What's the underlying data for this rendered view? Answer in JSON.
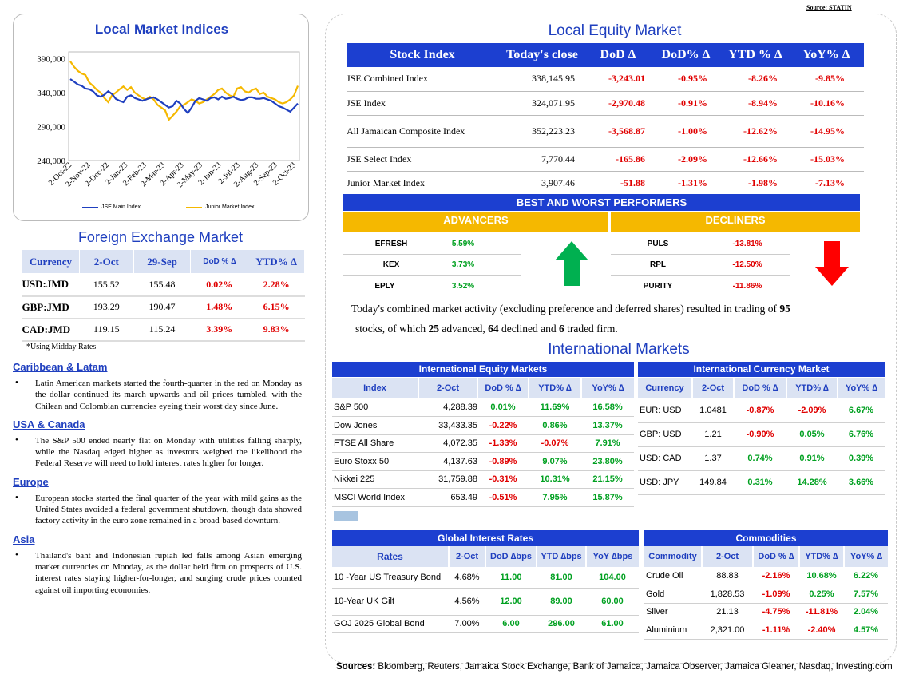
{
  "source_top": "Source: STATIN",
  "chart": {
    "title": "Local Market Indices",
    "legend": [
      "JSE Main Index",
      "Junior Market Index"
    ]
  },
  "chart_data": {
    "type": "line",
    "title": "Local Market Indices",
    "x_tick_labels": [
      "2-Oct-22",
      "2-Nov-22",
      "2-Dec-22",
      "2-Jan-23",
      "2-Feb-23",
      "2-Mar-23",
      "2-Apr-23",
      "2-May-23",
      "2-Jun-23",
      "2-Jul-23",
      "2-Aug-23",
      "2-Sep-23",
      "2-Oct-23"
    ],
    "y_tick_labels": [
      "240,000",
      "290,000",
      "340,000",
      "390,000"
    ],
    "ylim": [
      240000,
      400000
    ],
    "series": [
      {
        "name": "JSE Main Index",
        "color": "#1f3fbf",
        "values": [
          360000,
          356000,
          352000,
          350000,
          346000,
          345000,
          342000,
          336000,
          334000,
          337000,
          342000,
          338000,
          331000,
          328000,
          326000,
          334000,
          336000,
          332000,
          330000,
          328000,
          330000,
          332000,
          333000,
          330000,
          326000,
          322000,
          318000,
          320000,
          328000,
          324000,
          316000,
          310000,
          318000,
          328000,
          332000,
          330000,
          328000,
          332000,
          333000,
          330000,
          334000,
          331000,
          332000,
          334000,
          331000,
          329000,
          330000,
          333000,
          333000,
          331000,
          331000,
          332000,
          330000,
          328000,
          324000,
          320000,
          318000,
          315000,
          312000,
          318000,
          324000
        ]
      },
      {
        "name": "Junior Market Index",
        "color": "#f5b800",
        "values": [
          386000,
          378000,
          372000,
          368000,
          366000,
          355000,
          350000,
          344000,
          340000,
          332000,
          326000,
          336000,
          340000,
          345000,
          349000,
          344000,
          348000,
          340000,
          336000,
          332000,
          330000,
          334000,
          330000,
          322000,
          318000,
          314000,
          300000,
          306000,
          312000,
          320000,
          322000,
          326000,
          330000,
          328000,
          324000,
          326000,
          330000,
          334000,
          338000,
          344000,
          346000,
          340000,
          336000,
          334000,
          346000,
          348000,
          342000,
          340000,
          344000,
          346000,
          338000,
          340000,
          334000,
          332000,
          330000,
          326000,
          324000,
          326000,
          330000,
          336000,
          350000
        ]
      }
    ]
  },
  "equity": {
    "title": "Local Equity Market",
    "headers": [
      "Stock Index",
      "Today's close",
      "DoD  ∆",
      "DoD% ∆",
      "YTD % ∆",
      "YoY% ∆"
    ],
    "rows": [
      [
        "JSE Combined Index",
        "338,145.95",
        "-3,243.01",
        "-0.95%",
        "-8.26%",
        "-9.85%"
      ],
      [
        "JSE Index",
        "324,071.95",
        "-2,970.48",
        "-0.91%",
        "-8.94%",
        "-10.16%"
      ],
      [
        "All Jamaican Composite Index",
        "352,223.23",
        "-3,568.87",
        "-1.00%",
        "-12.62%",
        "-14.95%"
      ],
      [
        "JSE Select Index",
        "7,770.44",
        "-165.86",
        "-2.09%",
        "-12.66%",
        "-15.03%"
      ],
      [
        "Junior Market Index",
        "3,907.46",
        "-51.88",
        "-1.31%",
        "-1.98%",
        "-7.13%"
      ]
    ]
  },
  "performers": {
    "title": "BEST AND WORST PERFORMERS",
    "adv_label": "ADVANCERS",
    "dec_label": "DECLINERS",
    "advancers": [
      [
        "EFRESH",
        "5.59%"
      ],
      [
        "KEX",
        "3.73%"
      ],
      [
        "EPLY",
        "3.52%"
      ]
    ],
    "decliners": [
      [
        "PULS",
        "-13.81%"
      ],
      [
        "RPL",
        "-12.50%"
      ],
      [
        "PURITY",
        "-11.86%"
      ]
    ]
  },
  "summary": {
    "p1": "Today's combined market activity (excluding preference and deferred shares) resulted in trading of ",
    "total": "95",
    "p2": "stocks, of which ",
    "adv": "25",
    "p3": " advanced, ",
    "dec": "64",
    "p4": " declined and ",
    "firm": "6",
    "p5": " traded firm."
  },
  "fx": {
    "title": "Foreign Exchange Market",
    "headers": [
      "Currency",
      "2-Oct",
      "29-Sep",
      "DoD % ∆",
      "YTD% ∆"
    ],
    "rows": [
      [
        "USD:JMD",
        "155.52",
        "155.48",
        "0.02%",
        "2.28%"
      ],
      [
        "GBP:JMD",
        "193.29",
        "190.47",
        "1.48%",
        "6.15%"
      ],
      [
        "CAD:JMD",
        "119.15",
        "115.24",
        "3.39%",
        "9.83%"
      ]
    ],
    "note": "*Using Midday Rates"
  },
  "news": [
    {
      "head": "Caribbean & Latam",
      "text": "Latin American markets started the fourth-quarter in the red on Monday as the dollar continued its march upwards and oil prices tumbled, with the Chilean and Colombian currencies eyeing their worst day since June."
    },
    {
      "head": "USA & Canada",
      "text": "The S&P 500 ended nearly flat on Monday with utilities falling sharply, while the Nasdaq edged higher as investors weighed the likelihood the Federal Reserve will need to hold interest rates higher for longer."
    },
    {
      "head": "Europe",
      "text": "European stocks started the final quarter of the year with mild gains as the United States avoided a federal government shutdown, though data showed factory activity in the euro zone remained in a broad-based downturn."
    },
    {
      "head": "Asia",
      "text": "Thailand's baht and Indonesian rupiah led falls among Asian emerging market currencies on Monday, as the dollar held firm on prospects of U.S. interest rates staying higher-for-longer, and surging crude prices counted against oil importing economies."
    }
  ],
  "intl": {
    "title": "International Markets",
    "equity": {
      "title": "International Equity Markets",
      "headers": [
        "Index",
        "2-Oct",
        "DoD % ∆",
        "YTD% ∆",
        "YoY% ∆"
      ],
      "rows": [
        [
          "S&P 500",
          "4,288.39",
          "0.01%",
          "11.69%",
          "16.58%"
        ],
        [
          "Dow Jones",
          "33,433.35",
          "-0.22%",
          "0.86%",
          "13.37%"
        ],
        [
          "FTSE All Share",
          "4,072.35",
          "-1.33%",
          "-0.07%",
          "7.91%"
        ],
        [
          "Euro Stoxx 50",
          "4,137.63",
          "-0.89%",
          "9.07%",
          "23.80%"
        ],
        [
          "Nikkei 225",
          "31,759.88",
          "-0.31%",
          "10.31%",
          "21.15%"
        ],
        [
          "MSCI World Index",
          "653.49",
          "-0.51%",
          "7.95%",
          "15.87%"
        ]
      ]
    },
    "currency": {
      "title": "International Currency Market",
      "headers": [
        "Currency",
        "2-Oct",
        "DoD % ∆",
        "YTD% ∆",
        "YoY% ∆"
      ],
      "rows": [
        [
          "EUR: USD",
          "1.0481",
          "-0.87%",
          "-2.09%",
          "6.67%"
        ],
        [
          "GBP: USD",
          "1.21",
          "-0.90%",
          "0.05%",
          "6.76%"
        ],
        [
          "USD: CAD",
          "1.37",
          "0.74%",
          "0.91%",
          "0.39%"
        ],
        [
          "USD: JPY",
          "149.84",
          "0.31%",
          "14.28%",
          "3.66%"
        ]
      ]
    },
    "rates": {
      "title": "Global Interest Rates",
      "headers": [
        "Rates",
        "2-Oct",
        "DoD ∆bps",
        "YTD ∆bps",
        "YoY ∆bps"
      ],
      "rows": [
        [
          "10 -Year US Treasury Bond",
          "4.68%",
          "11.00",
          "81.00",
          "104.00"
        ],
        [
          "10-Year UK Gilt",
          "4.56%",
          "12.00",
          "89.00",
          "60.00"
        ],
        [
          "GOJ 2025 Global Bond",
          "7.00%",
          "6.00",
          "296.00",
          "61.00"
        ]
      ]
    },
    "commodities": {
      "title": "Commodities",
      "headers": [
        "Commodity",
        "2-Oct",
        "DoD % ∆",
        "YTD% ∆",
        "YoY% ∆"
      ],
      "rows": [
        [
          "Crude Oil",
          "88.83",
          "-2.16%",
          "10.68%",
          "6.22%"
        ],
        [
          "Gold",
          "1,828.53",
          "-1.09%",
          "0.25%",
          "7.57%"
        ],
        [
          "Silver",
          "21.13",
          "-4.75%",
          "-11.81%",
          "2.04%"
        ],
        [
          "Aluminium",
          "2,321.00",
          "-1.11%",
          "-2.40%",
          "4.57%"
        ]
      ]
    }
  },
  "sources": {
    "label": "Sources:",
    "text": " Bloomberg, Reuters, Jamaica Stock Exchange, Bank of Jamaica, Jamaica Observer, Jamaica Gleaner, Nasdaq, Investing.com"
  }
}
